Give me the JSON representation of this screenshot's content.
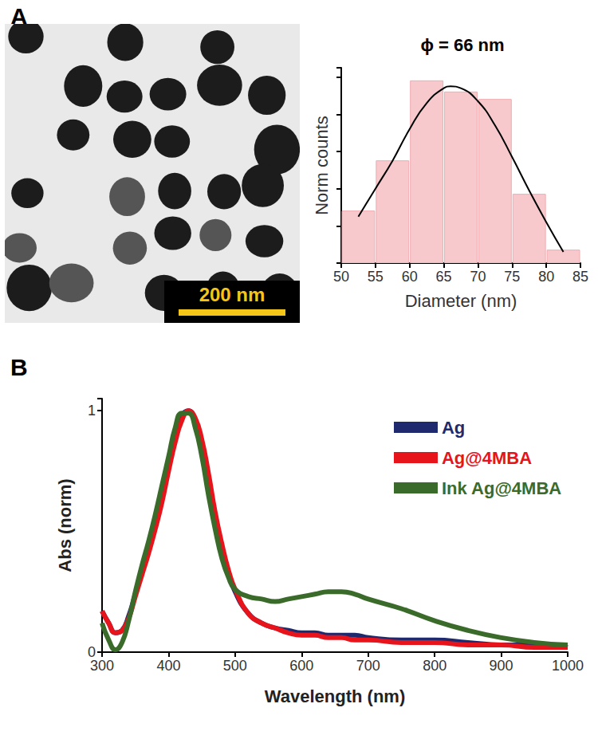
{
  "image": {
    "panel": "A",
    "scale_bar": "200 nm"
  },
  "chart_data": [
    {
      "type": "histogram",
      "panel": "A",
      "title": "ϕ = 66 nm",
      "xlabel": "Diameter (nm)",
      "ylabel": "Norm counts",
      "bins": [
        50,
        55,
        60,
        65,
        70,
        75,
        80,
        85
      ],
      "counts": [
        0.28,
        0.55,
        0.98,
        0.92,
        0.88,
        0.37,
        0.07
      ],
      "color": "#f7c9cc",
      "fit": {
        "x": [
          52.5,
          55,
          57.5,
          60,
          62.5,
          65,
          66,
          67.5,
          70,
          72.5,
          75,
          77.5,
          80,
          82.5
        ],
        "y": [
          0.25,
          0.4,
          0.55,
          0.72,
          0.86,
          0.94,
          0.95,
          0.94,
          0.87,
          0.74,
          0.57,
          0.39,
          0.22,
          0.06
        ],
        "color": "#000000"
      },
      "xlim": [
        50,
        85
      ],
      "xticks": [
        50,
        55,
        60,
        65,
        70,
        75,
        80,
        85
      ],
      "ylim": [
        0,
        1.05
      ],
      "yticks": [
        0,
        0.2,
        0.4,
        0.6,
        0.8,
        1
      ],
      "tick_labels": "x"
    },
    {
      "type": "line",
      "panel": "B",
      "xlabel": "Wavelength (nm)",
      "ylabel": "Abs (norm)",
      "x": [
        300,
        310,
        320,
        330,
        340,
        350,
        360,
        370,
        380,
        390,
        400,
        410,
        420,
        430,
        440,
        450,
        460,
        470,
        480,
        490,
        500,
        520,
        540,
        560,
        580,
        600,
        620,
        640,
        660,
        680,
        700,
        750,
        800,
        850,
        900,
        950,
        1000
      ],
      "series": [
        {
          "name": "Ag",
          "color": "#1f2a6e",
          "values": [
            0.17,
            0.12,
            0.08,
            0.09,
            0.15,
            0.24,
            0.33,
            0.42,
            0.52,
            0.64,
            0.77,
            0.89,
            0.98,
            1.0,
            0.96,
            0.86,
            0.72,
            0.56,
            0.43,
            0.33,
            0.25,
            0.16,
            0.12,
            0.1,
            0.09,
            0.08,
            0.08,
            0.07,
            0.07,
            0.07,
            0.06,
            0.05,
            0.05,
            0.04,
            0.03,
            0.03,
            0.02
          ]
        },
        {
          "name": "Ag@4MBA",
          "color": "#e8141b",
          "values": [
            0.17,
            0.12,
            0.08,
            0.09,
            0.14,
            0.23,
            0.32,
            0.41,
            0.51,
            0.62,
            0.75,
            0.87,
            0.96,
            1.0,
            0.97,
            0.88,
            0.74,
            0.58,
            0.45,
            0.34,
            0.26,
            0.16,
            0.12,
            0.1,
            0.08,
            0.07,
            0.07,
            0.06,
            0.06,
            0.05,
            0.05,
            0.04,
            0.04,
            0.03,
            0.03,
            0.02,
            0.02
          ]
        },
        {
          "name": "Ink Ag@4MBA",
          "color": "#3a6b2a",
          "values": [
            0.12,
            0.05,
            0.01,
            0.04,
            0.13,
            0.25,
            0.36,
            0.46,
            0.57,
            0.69,
            0.81,
            0.93,
            0.99,
            0.99,
            0.93,
            0.81,
            0.65,
            0.51,
            0.39,
            0.31,
            0.26,
            0.23,
            0.22,
            0.21,
            0.22,
            0.23,
            0.24,
            0.25,
            0.25,
            0.24,
            0.22,
            0.18,
            0.13,
            0.09,
            0.06,
            0.04,
            0.03
          ]
        }
      ],
      "xlim": [
        300,
        1000
      ],
      "xticks": [
        300,
        400,
        500,
        600,
        700,
        800,
        900,
        1000
      ],
      "ylim": [
        0,
        1.05
      ],
      "yticks": [
        0,
        1
      ],
      "legend": "upper right"
    }
  ]
}
